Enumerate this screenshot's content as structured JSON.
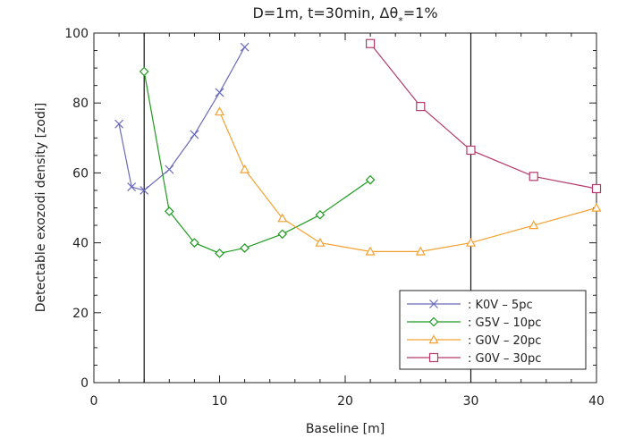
{
  "chart_data": {
    "type": "line",
    "title": "D=1m, t=30min, Δθ",
    "title_subscript": "*",
    "title_suffix": "=1%",
    "xlabel": "Baseline [m]",
    "ylabel": "Detectable exozodi density [zodi]",
    "xlim": [
      0,
      40
    ],
    "ylim": [
      0,
      100
    ],
    "x_ticks": [
      0,
      10,
      20,
      30,
      40
    ],
    "y_ticks": [
      0,
      20,
      40,
      60,
      80,
      100
    ],
    "vlines": [
      4,
      30
    ],
    "legend_position": "bottom-right",
    "series": [
      {
        "name": ": K0V – 5pc",
        "color": "#6a6ab8",
        "marker": "x",
        "x": [
          2,
          3,
          4,
          6,
          8,
          10,
          12
        ],
        "y": [
          74,
          56,
          55,
          61,
          71,
          83,
          96
        ]
      },
      {
        "name": ": G5V – 10pc",
        "color": "#1f9a1f",
        "marker": "diamond",
        "x": [
          4,
          6,
          8,
          10,
          12,
          15,
          18,
          22
        ],
        "y": [
          89,
          49,
          40,
          37,
          38.5,
          42.5,
          48,
          58
        ]
      },
      {
        "name": ": G0V – 20pc",
        "color": "#f5a030",
        "marker": "triangle",
        "x": [
          10,
          12,
          15,
          18,
          22,
          26,
          30,
          35,
          40
        ],
        "y": [
          77.5,
          61,
          47,
          40,
          37.5,
          37.5,
          40,
          45,
          50
        ]
      },
      {
        "name": ": G0V – 30pc",
        "color": "#b33a6c",
        "marker": "square",
        "x": [
          22,
          26,
          30,
          35,
          40
        ],
        "y": [
          97,
          79,
          66.5,
          59,
          55.5
        ]
      }
    ]
  }
}
